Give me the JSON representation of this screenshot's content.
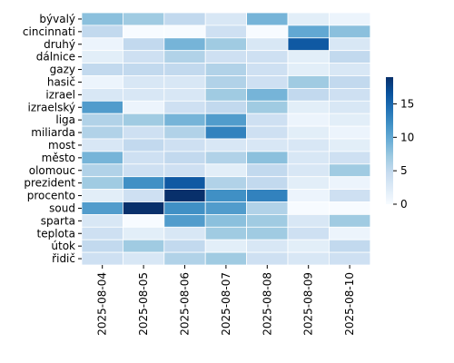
{
  "chart_data": {
    "type": "heatmap",
    "title": "",
    "xlabel": "",
    "ylabel": "",
    "rows": [
      "bývalý",
      "cincinnati",
      "druhý",
      "dálnice",
      "gazy",
      "hasič",
      "izrael",
      "izraelský",
      "liga",
      "miliarda",
      "most",
      "město",
      "olomouc",
      "prezident",
      "procento",
      "soud",
      "sparta",
      "teplota",
      "útok",
      "řidič"
    ],
    "columns": [
      "2025-08-04",
      "2025-08-05",
      "2025-08-06",
      "2025-08-07",
      "2025-08-08",
      "2025-08-09",
      "2025-08-10"
    ],
    "values": [
      [
        8,
        7,
        5,
        3,
        9,
        2,
        1
      ],
      [
        5,
        0,
        0,
        4,
        0,
        10,
        8
      ],
      [
        1,
        5,
        9,
        7,
        3,
        16,
        3
      ],
      [
        2,
        4,
        6,
        4,
        4,
        2,
        5
      ],
      [
        5,
        5,
        5,
        6,
        4,
        2,
        3
      ],
      [
        1,
        3,
        3,
        6,
        4,
        7,
        5
      ],
      [
        3,
        3,
        3,
        7,
        9,
        5,
        4
      ],
      [
        11,
        1,
        4,
        5,
        7,
        2,
        3
      ],
      [
        6,
        7,
        9,
        11,
        4,
        1,
        2
      ],
      [
        6,
        4,
        6,
        13,
        4,
        2,
        1
      ],
      [
        3,
        5,
        4,
        3,
        3,
        3,
        2
      ],
      [
        9,
        4,
        5,
        6,
        8,
        3,
        4
      ],
      [
        6,
        4,
        4,
        2,
        5,
        3,
        7
      ],
      [
        7,
        12,
        16,
        6,
        5,
        2,
        1
      ],
      [
        2,
        4,
        19,
        12,
        13,
        1,
        4
      ],
      [
        11,
        19,
        12,
        11,
        6,
        0,
        0
      ],
      [
        3,
        0,
        11,
        8,
        7,
        3,
        7
      ],
      [
        4,
        2,
        3,
        7,
        7,
        4,
        1
      ],
      [
        5,
        7,
        5,
        2,
        3,
        2,
        5
      ],
      [
        4,
        3,
        6,
        7,
        4,
        3,
        4
      ]
    ],
    "vmin": 0,
    "vmax": 19,
    "colormap": "Blues",
    "colorbar_ticks": [
      0,
      5,
      10,
      15
    ],
    "cell_border_color": "#ffffff"
  }
}
